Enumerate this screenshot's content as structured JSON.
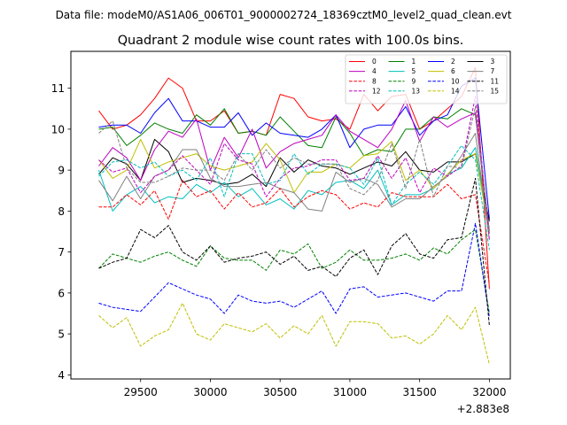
{
  "chart_data": {
    "type": "line",
    "suptitle": "Data file: modeM0/AS1A06_006T01_9000002724_18369cztM0_level2_quad_clean.evt",
    "title": "Quadrant 2 module wise count rates with 100.0s bins.",
    "xlabel": "",
    "ylabel": "",
    "offset_label": "+2.883e8",
    "xlim": [
      29000,
      32150
    ],
    "ylim": [
      3.9,
      11.9
    ],
    "xticks": [
      29500,
      30000,
      30500,
      31000,
      31500,
      32000
    ],
    "yticks": [
      4,
      5,
      6,
      7,
      8,
      9,
      10,
      11
    ],
    "xtick_labels": [
      "29500",
      "30000",
      "30500",
      "31000",
      "31500",
      "32000"
    ],
    "ytick_labels": [
      "4",
      "5",
      "6",
      "7",
      "8",
      "9",
      "10",
      "11"
    ],
    "legend_position": "top-right",
    "legend_order": [
      0,
      4,
      8,
      12,
      1,
      5,
      9,
      13,
      2,
      6,
      10,
      14,
      3,
      7,
      11,
      15
    ],
    "x": [
      29200,
      29300,
      29400,
      29500,
      29600,
      29700,
      29800,
      29900,
      30000,
      30100,
      30200,
      30300,
      30400,
      30500,
      30600,
      30700,
      30800,
      30900,
      31000,
      31100,
      31200,
      31300,
      31400,
      31500,
      31600,
      31700,
      31800,
      31900,
      32000
    ],
    "series": [
      {
        "name": "0",
        "color": "#ff0000",
        "dash": "solid",
        "values": [
          10.45,
          10.0,
          10.1,
          10.35,
          10.75,
          11.25,
          11.0,
          10.2,
          10.2,
          10.45,
          9.9,
          9.95,
          9.85,
          10.85,
          10.75,
          10.3,
          10.2,
          10.25,
          10.0,
          10.85,
          10.45,
          10.8,
          10.85,
          10.0,
          10.2,
          10.5,
          10.8,
          11.5,
          6.1
        ]
      },
      {
        "name": "1",
        "color": "#008000",
        "dash": "solid",
        "values": [
          10.0,
          10.05,
          9.6,
          9.85,
          10.15,
          10.0,
          9.9,
          10.35,
          10.1,
          10.5,
          9.9,
          9.95,
          9.85,
          10.3,
          9.95,
          9.6,
          9.55,
          10.3,
          9.9,
          9.35,
          9.5,
          9.45,
          10.0,
          10.0,
          10.3,
          10.25,
          10.5,
          10.35,
          7.5
        ]
      },
      {
        "name": "2",
        "color": "#0000ff",
        "dash": "solid",
        "values": [
          10.05,
          10.1,
          10.1,
          9.9,
          10.4,
          10.75,
          10.2,
          10.2,
          10.05,
          10.05,
          10.4,
          9.85,
          10.15,
          9.9,
          9.85,
          9.8,
          10.0,
          10.35,
          9.55,
          10.0,
          10.1,
          10.1,
          10.55,
          9.85,
          10.2,
          10.35,
          11.05,
          11.25,
          7.8
        ]
      },
      {
        "name": "3",
        "color": "#000000",
        "dash": "solid",
        "values": [
          8.9,
          9.3,
          9.15,
          8.75,
          9.75,
          9.45,
          8.7,
          8.8,
          8.75,
          8.65,
          8.7,
          8.9,
          8.6,
          9.3,
          8.95,
          9.25,
          9.1,
          9.05,
          8.9,
          9.05,
          9.2,
          9.1,
          9.45,
          9.0,
          8.95,
          9.2,
          9.2,
          9.4,
          7.75
        ]
      },
      {
        "name": "4",
        "color": "#bf00bf",
        "dash": "solid",
        "values": [
          9.1,
          9.55,
          9.3,
          8.75,
          9.5,
          9.95,
          9.8,
          10.25,
          9.0,
          9.8,
          9.3,
          10.0,
          9.05,
          9.45,
          9.65,
          9.75,
          9.85,
          10.35,
          9.95,
          9.75,
          9.55,
          10.0,
          10.7,
          9.7,
          10.3,
          10.05,
          10.25,
          10.4,
          7.5
        ]
      },
      {
        "name": "5",
        "color": "#00bfbf",
        "dash": "solid",
        "values": [
          9.0,
          8.0,
          8.4,
          8.6,
          8.2,
          8.35,
          8.3,
          8.65,
          8.45,
          8.7,
          8.35,
          8.55,
          8.15,
          8.3,
          8.05,
          8.5,
          8.4,
          8.7,
          8.75,
          8.55,
          9.0,
          8.15,
          8.4,
          8.4,
          8.55,
          8.9,
          9.05,
          9.55,
          7.5
        ]
      },
      {
        "name": "6",
        "color": "#bfbf00",
        "dash": "solid",
        "values": [
          9.25,
          8.8,
          9.0,
          9.75,
          9.05,
          9.2,
          9.3,
          9.4,
          9.1,
          9.0,
          9.1,
          9.2,
          9.65,
          9.25,
          8.45,
          8.95,
          8.95,
          9.15,
          9.05,
          9.35,
          9.4,
          9.7,
          8.75,
          9.0,
          8.55,
          8.9,
          9.25,
          9.4,
          7.45
        ]
      },
      {
        "name": "7",
        "color": "#808080",
        "dash": "solid",
        "values": [
          8.75,
          8.25,
          8.85,
          8.3,
          8.85,
          9.0,
          9.5,
          9.5,
          8.8,
          8.6,
          8.6,
          8.65,
          8.7,
          8.55,
          8.45,
          8.05,
          8.0,
          8.95,
          8.7,
          8.8,
          8.65,
          8.1,
          8.3,
          8.3,
          8.6,
          8.85,
          9.35,
          9.9,
          7.3
        ]
      },
      {
        "name": "8",
        "color": "#ff0000",
        "dash": "dashed",
        "values": [
          8.1,
          8.1,
          8.4,
          8.15,
          8.5,
          7.8,
          8.75,
          8.35,
          8.5,
          8.05,
          8.45,
          8.1,
          8.2,
          8.55,
          8.1,
          8.35,
          8.5,
          8.4,
          8.05,
          8.2,
          8.1,
          8.45,
          8.35,
          8.35,
          8.35,
          8.65,
          8.3,
          8.4,
          6.2
        ]
      },
      {
        "name": "9",
        "color": "#008000",
        "dash": "dashed",
        "values": [
          6.6,
          6.95,
          6.85,
          6.75,
          6.9,
          7.0,
          6.8,
          6.65,
          7.15,
          6.85,
          6.8,
          6.8,
          6.55,
          7.05,
          6.95,
          7.2,
          6.6,
          6.75,
          7.05,
          6.8,
          6.8,
          6.85,
          6.95,
          6.8,
          7.1,
          6.95,
          7.3,
          7.55,
          5.5
        ]
      },
      {
        "name": "10",
        "color": "#0000ff",
        "dash": "dashed",
        "values": [
          5.75,
          5.65,
          5.6,
          5.55,
          5.9,
          6.25,
          6.1,
          5.95,
          5.85,
          5.5,
          5.95,
          5.8,
          5.75,
          5.8,
          5.65,
          5.85,
          6.05,
          5.5,
          6.1,
          6.15,
          5.9,
          5.95,
          6.0,
          5.9,
          5.8,
          6.05,
          6.05,
          7.7,
          5.4
        ]
      },
      {
        "name": "11",
        "color": "#000000",
        "dash": "dashed",
        "values": [
          6.6,
          6.75,
          6.85,
          7.55,
          7.35,
          7.65,
          7.0,
          6.8,
          7.15,
          6.75,
          6.85,
          6.9,
          7.0,
          6.7,
          6.9,
          6.55,
          6.65,
          6.4,
          6.85,
          7.05,
          6.45,
          7.15,
          7.45,
          6.95,
          6.85,
          7.3,
          7.35,
          8.8,
          5.2
        ]
      },
      {
        "name": "12",
        "color": "#bf00bf",
        "dash": "dashed",
        "values": [
          9.25,
          8.95,
          9.05,
          8.45,
          8.85,
          9.0,
          9.35,
          9.0,
          8.65,
          9.65,
          9.25,
          9.15,
          8.35,
          8.8,
          9.05,
          9.1,
          9.25,
          9.25,
          8.75,
          8.8,
          9.35,
          8.8,
          9.3,
          8.45,
          9.05,
          8.85,
          9.1,
          10.8,
          7.3
        ]
      },
      {
        "name": "13",
        "color": "#00bfbf",
        "dash": "dashed",
        "values": [
          8.85,
          9.2,
          9.25,
          9.05,
          9.2,
          8.85,
          9.0,
          8.75,
          9.3,
          8.35,
          9.4,
          9.4,
          8.65,
          8.75,
          9.4,
          8.9,
          9.15,
          9.15,
          9.05,
          8.65,
          9.3,
          8.15,
          8.65,
          8.95,
          8.65,
          9.1,
          9.6,
          9.25,
          7.05
        ]
      },
      {
        "name": "14",
        "color": "#bfbf00",
        "dash": "dashed",
        "values": [
          5.45,
          5.15,
          5.4,
          4.7,
          4.95,
          5.1,
          5.75,
          5.0,
          4.85,
          5.25,
          5.15,
          5.05,
          5.25,
          4.9,
          5.2,
          5.0,
          5.45,
          4.7,
          5.3,
          5.3,
          5.25,
          4.9,
          4.95,
          4.75,
          5.0,
          5.45,
          5.1,
          5.65,
          4.25
        ]
      },
      {
        "name": "15",
        "color": "#808080",
        "dash": "dashed",
        "values": [
          9.9,
          10.2,
          9.05,
          8.7,
          8.7,
          8.85,
          9.05,
          9.0,
          9.0,
          8.75,
          9.4,
          9.0,
          9.5,
          9.05,
          9.3,
          9.15,
          9.15,
          9.15,
          8.55,
          8.4,
          8.75,
          9.65,
          8.55,
          9.75,
          8.35,
          9.1,
          9.05,
          10.55,
          7.45
        ]
      }
    ]
  }
}
